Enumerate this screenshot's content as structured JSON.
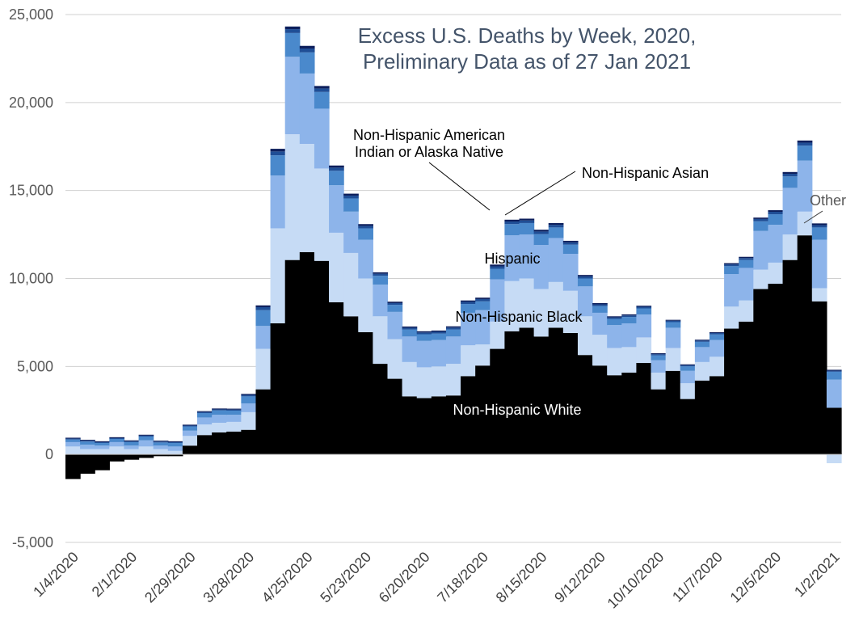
{
  "chart_data": {
    "type": "bar",
    "stacked": true,
    "title_lines": [
      "Excess U.S. Deaths by Week, 2020,",
      "Preliminary Data as of 27 Jan 2021"
    ],
    "xlabel": "",
    "ylabel": "",
    "ylim": [
      -5000,
      25000
    ],
    "yticks": [
      -5000,
      0,
      5000,
      10000,
      15000,
      20000,
      25000
    ],
    "ytick_labels": [
      "-5,000",
      "0",
      "5,000",
      "10,000",
      "15,000",
      "20,000",
      "25,000"
    ],
    "grid": true,
    "legend": "none (direct labels)",
    "xtick_labels": [
      "1/4/2020",
      "2/1/2020",
      "2/29/2020",
      "3/28/2020",
      "4/25/2020",
      "5/23/2020",
      "6/20/2020",
      "7/18/2020",
      "8/15/2020",
      "9/12/2020",
      "10/10/2020",
      "11/7/2020",
      "12/5/2020",
      "1/2/2021"
    ],
    "categories": [
      "1/4/2020",
      "1/11/2020",
      "1/18/2020",
      "1/25/2020",
      "2/1/2020",
      "2/8/2020",
      "2/15/2020",
      "2/22/2020",
      "2/29/2020",
      "3/7/2020",
      "3/14/2020",
      "3/21/2020",
      "3/28/2020",
      "4/4/2020",
      "4/11/2020",
      "4/18/2020",
      "4/25/2020",
      "5/2/2020",
      "5/9/2020",
      "5/16/2020",
      "5/23/2020",
      "5/30/2020",
      "6/6/2020",
      "6/13/2020",
      "6/20/2020",
      "6/27/2020",
      "7/4/2020",
      "7/11/2020",
      "7/18/2020",
      "7/25/2020",
      "8/1/2020",
      "8/8/2020",
      "8/15/2020",
      "8/22/2020",
      "8/29/2020",
      "9/5/2020",
      "9/12/2020",
      "9/19/2020",
      "9/26/2020",
      "10/3/2020",
      "10/10/2020",
      "10/17/2020",
      "10/24/2020",
      "10/31/2020",
      "11/7/2020",
      "11/14/2020",
      "11/21/2020",
      "11/28/2020",
      "12/5/2020",
      "12/12/2020",
      "12/19/2020",
      "12/26/2020",
      "1/2/2021"
    ],
    "series": [
      {
        "name": "Non-Hispanic White",
        "color": "#000000",
        "values": [
          -1400,
          -1100,
          -900,
          -400,
          -300,
          -200,
          -100,
          -100,
          500,
          1100,
          1250,
          1300,
          1400,
          3700,
          7450,
          11050,
          11500,
          11000,
          8650,
          7850,
          6950,
          5150,
          4300,
          3300,
          3200,
          3300,
          3350,
          4450,
          5050,
          6000,
          7000,
          7200,
          6700,
          7200,
          6900,
          5650,
          5050,
          4500,
          4650,
          5200,
          3700,
          4750,
          3150,
          4200,
          4450,
          7150,
          7550,
          9400,
          9700,
          11050,
          12450,
          8700,
          2650
        ]
      },
      {
        "name": "Non-Hispanic Black",
        "color": "#c6dbf5",
        "values": [
          450,
          300,
          300,
          450,
          300,
          450,
          300,
          200,
          550,
          600,
          550,
          550,
          1000,
          2300,
          5400,
          7150,
          6150,
          5250,
          3950,
          3600,
          3050,
          2700,
          2250,
          1950,
          1750,
          1700,
          1800,
          1750,
          1200,
          1550,
          2850,
          2800,
          2700,
          2600,
          2400,
          2200,
          1750,
          1550,
          1450,
          1450,
          950,
          1300,
          900,
          1050,
          1100,
          1250,
          1200,
          1100,
          1200,
          1450,
          1350,
          750,
          -500
        ]
      },
      {
        "name": "Hispanic",
        "color": "#8db4ea",
        "values": [
          250,
          250,
          200,
          250,
          200,
          350,
          200,
          250,
          300,
          400,
          450,
          400,
          500,
          1300,
          3000,
          4400,
          4000,
          3400,
          2700,
          2350,
          2200,
          1800,
          1550,
          1450,
          1500,
          1500,
          1550,
          1850,
          1950,
          2400,
          2600,
          2500,
          2500,
          2500,
          2100,
          1700,
          1250,
          1300,
          1350,
          1300,
          700,
          1150,
          700,
          850,
          950,
          1850,
          1850,
          2200,
          2150,
          2650,
          2900,
          2750,
          1600
        ]
      },
      {
        "name": "Non-Hispanic Asian",
        "color": "#4a89cc",
        "values": [
          150,
          180,
          150,
          180,
          200,
          220,
          180,
          200,
          240,
          250,
          250,
          240,
          400,
          900,
          1150,
          1350,
          1200,
          950,
          820,
          750,
          650,
          500,
          400,
          400,
          380,
          370,
          400,
          500,
          500,
          600,
          640,
          650,
          620,
          600,
          520,
          450,
          380,
          350,
          360,
          350,
          280,
          320,
          260,
          300,
          320,
          450,
          450,
          550,
          600,
          650,
          850,
          700,
          450
        ]
      },
      {
        "name": "Non-Hispanic American Indian or Alaska Native",
        "color": "#1f4e96",
        "values": [
          50,
          50,
          50,
          50,
          50,
          50,
          50,
          50,
          50,
          60,
          60,
          60,
          80,
          170,
          220,
          220,
          220,
          200,
          180,
          160,
          140,
          120,
          100,
          100,
          100,
          100,
          110,
          120,
          130,
          140,
          150,
          150,
          150,
          150,
          130,
          120,
          100,
          90,
          90,
          90,
          70,
          80,
          60,
          70,
          80,
          100,
          110,
          130,
          140,
          150,
          170,
          130,
          60
        ]
      },
      {
        "name": "Other",
        "color": "#0d1f5c",
        "values": [
          50,
          50,
          50,
          50,
          50,
          50,
          50,
          50,
          50,
          50,
          50,
          50,
          60,
          100,
          150,
          150,
          150,
          140,
          120,
          110,
          100,
          80,
          80,
          70,
          70,
          70,
          70,
          80,
          80,
          100,
          100,
          100,
          100,
          100,
          90,
          80,
          70,
          60,
          60,
          60,
          50,
          50,
          50,
          50,
          50,
          70,
          70,
          80,
          90,
          100,
          120,
          100,
          50
        ]
      }
    ],
    "annotations": {
      "white": "Non-Hispanic White",
      "black": "Non-Hispanic Black",
      "hispanic": "Hispanic",
      "aian_line1": "Non-Hispanic American",
      "aian_line2": "Indian or Alaska Native",
      "asian": "Non-Hispanic Asian",
      "other": "Other"
    }
  }
}
